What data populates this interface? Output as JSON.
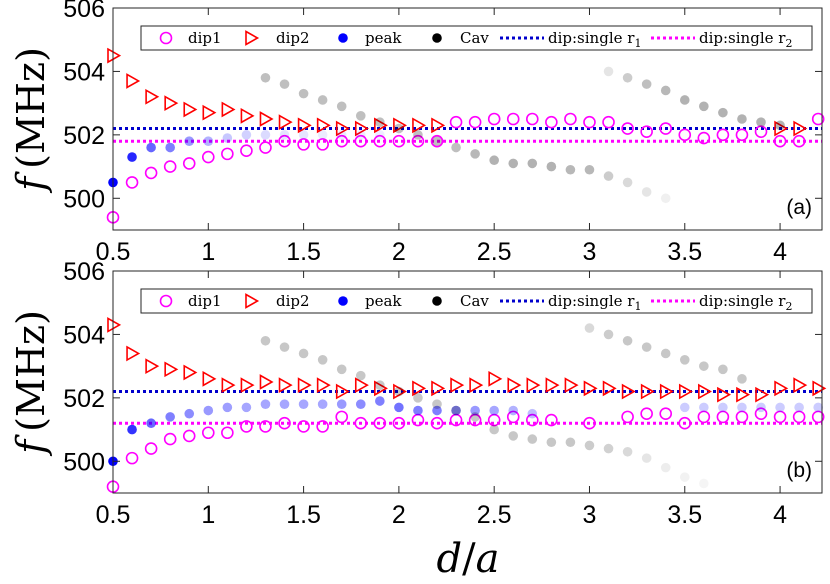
{
  "colors": {
    "dip1": "#ff00ff",
    "dip2": "#ff0000",
    "peak": "#0000ff",
    "cav": "#000000",
    "line_r1": "#0000cc",
    "line_r2": "#ff00ff"
  },
  "figure": {
    "xlabel_var": "d",
    "xlabel_sep": "/",
    "xlabel_den": "a"
  },
  "chart_data": [
    {
      "type": "scatter",
      "panel_label": "(a)",
      "xlim": [
        0.5,
        4.22
      ],
      "ylim": [
        499,
        506
      ],
      "xticks": [
        0.5,
        1,
        1.5,
        2,
        2.5,
        3,
        3.5,
        4
      ],
      "xtick_labels": [
        "0.5",
        "1",
        "1.5",
        "2",
        "2.5",
        "3",
        "3.5",
        "4"
      ],
      "yticks": [
        500,
        502,
        504,
        506
      ],
      "ytick_labels": [
        "500",
        "502",
        "504",
        "506"
      ],
      "ylabel_f": "f",
      "ylabel_unit": "(MHz)",
      "legend": [
        "dip1",
        "dip2",
        "peak",
        "Cav",
        "dip:single r",
        "dip:single r"
      ],
      "legend_subscripts": [
        "1",
        "2"
      ],
      "single_r1": 502.2,
      "single_r2": 501.8,
      "series": [
        {
          "name": "dip1",
          "x": [
            0.5,
            0.6,
            0.7,
            0.8,
            0.9,
            1.0,
            1.1,
            1.2,
            1.3,
            1.4,
            1.5,
            1.6,
            1.7,
            1.8,
            1.9,
            2.0,
            2.1,
            2.2,
            2.3,
            2.4,
            2.5,
            2.6,
            2.7,
            2.8,
            2.9,
            3.0,
            3.1,
            3.2,
            3.3,
            3.4,
            3.5,
            3.6,
            3.7,
            3.8,
            3.9,
            4.0,
            4.1,
            4.2
          ],
          "y": [
            499.4,
            500.5,
            500.8,
            501.0,
            501.1,
            501.3,
            501.4,
            501.5,
            501.6,
            501.8,
            501.7,
            501.7,
            501.8,
            501.8,
            501.8,
            501.8,
            501.8,
            501.8,
            502.4,
            502.4,
            502.5,
            502.5,
            502.5,
            502.4,
            502.5,
            502.4,
            502.4,
            502.2,
            502.1,
            502.2,
            502.0,
            501.9,
            502.0,
            502.0,
            502.1,
            501.8,
            501.8,
            502.5
          ]
        },
        {
          "name": "dip2",
          "x": [
            0.5,
            0.6,
            0.7,
            0.8,
            0.9,
            1.0,
            1.1,
            1.2,
            1.3,
            1.4,
            1.5,
            1.6,
            1.7,
            1.8,
            1.9,
            2.0,
            2.1,
            2.2,
            4.0,
            4.1
          ],
          "y": [
            504.5,
            503.7,
            503.2,
            503.0,
            502.8,
            502.7,
            502.8,
            502.6,
            502.5,
            502.4,
            502.3,
            502.3,
            502.2,
            502.2,
            502.3,
            502.3,
            502.3,
            502.3,
            502.2,
            502.2
          ]
        },
        {
          "name": "peak",
          "x": [
            0.5,
            0.6,
            0.7,
            0.8,
            0.9,
            1.0,
            1.1,
            1.2,
            1.3,
            1.4,
            1.5,
            1.6,
            1.7,
            1.8,
            1.9
          ],
          "y": [
            500.5,
            501.3,
            501.6,
            501.6,
            501.8,
            501.8,
            501.9,
            502.0,
            502.0,
            502.0,
            502.0,
            502.0,
            502.0,
            502.0,
            502.0
          ],
          "opacity": [
            1.0,
            0.85,
            0.6,
            0.5,
            0.4,
            0.3,
            0.22,
            0.18,
            0.14,
            0.1,
            0.1,
            0.08,
            0.08,
            0.07,
            0.07
          ]
        },
        {
          "name": "Cav",
          "x": [
            1.3,
            1.4,
            1.5,
            1.6,
            1.7,
            1.8,
            1.9,
            2.0,
            2.1,
            2.2,
            2.3,
            2.4,
            2.5,
            2.6,
            2.7,
            2.8,
            2.9,
            3.0,
            3.1,
            3.2,
            3.3,
            3.4,
            3.1,
            3.2,
            3.3,
            3.4,
            3.5,
            3.6,
            3.7,
            3.8,
            3.9,
            4.0
          ],
          "y": [
            503.8,
            503.6,
            503.3,
            503.1,
            502.9,
            502.6,
            502.4,
            502.2,
            502.0,
            501.8,
            501.6,
            501.4,
            501.2,
            501.1,
            501.1,
            501.0,
            500.9,
            500.9,
            500.7,
            500.5,
            500.2,
            500.0,
            504.0,
            503.8,
            503.6,
            503.4,
            503.1,
            502.9,
            502.7,
            502.5,
            502.4,
            502.3
          ],
          "opacity": [
            0.25,
            0.25,
            0.25,
            0.25,
            0.25,
            0.25,
            0.25,
            0.25,
            0.25,
            0.25,
            0.25,
            0.28,
            0.3,
            0.3,
            0.3,
            0.3,
            0.28,
            0.28,
            0.2,
            0.15,
            0.1,
            0.06,
            0.1,
            0.2,
            0.25,
            0.28,
            0.3,
            0.3,
            0.3,
            0.3,
            0.3,
            0.3
          ]
        }
      ]
    },
    {
      "type": "scatter",
      "panel_label": "(b)",
      "xlim": [
        0.5,
        4.22
      ],
      "ylim": [
        499,
        506
      ],
      "xticks": [
        0.5,
        1,
        1.5,
        2,
        2.5,
        3,
        3.5,
        4
      ],
      "xtick_labels": [
        "0.5",
        "1",
        "1.5",
        "2",
        "2.5",
        "3",
        "3.5",
        "4"
      ],
      "yticks": [
        500,
        502,
        504,
        506
      ],
      "ytick_labels": [
        "500",
        "502",
        "504",
        "506"
      ],
      "ylabel_f": "f",
      "ylabel_unit": "(MHz)",
      "legend": [
        "dip1",
        "dip2",
        "peak",
        "Cav",
        "dip:single r",
        "dip:single r"
      ],
      "legend_subscripts": [
        "1",
        "2"
      ],
      "single_r1": 502.2,
      "single_r2": 501.2,
      "series": [
        {
          "name": "dip1",
          "x": [
            0.5,
            0.6,
            0.7,
            0.8,
            0.9,
            1.0,
            1.1,
            1.2,
            1.3,
            1.4,
            1.5,
            1.6,
            1.7,
            1.8,
            1.9,
            2.0,
            2.1,
            2.2,
            2.3,
            2.4,
            2.5,
            2.6,
            2.7,
            2.8,
            3.0,
            3.2,
            3.3,
            3.4,
            3.5,
            3.6,
            3.7,
            3.8,
            3.9,
            4.0,
            4.1,
            4.2
          ],
          "y": [
            499.2,
            500.1,
            500.4,
            500.7,
            500.8,
            500.9,
            500.9,
            501.1,
            501.1,
            501.2,
            501.1,
            501.1,
            501.4,
            501.2,
            501.2,
            501.2,
            501.3,
            501.2,
            501.3,
            501.3,
            501.3,
            501.4,
            501.3,
            501.3,
            501.2,
            501.4,
            501.5,
            501.5,
            501.2,
            501.4,
            501.4,
            501.4,
            501.5,
            501.4,
            501.4,
            501.4
          ]
        },
        {
          "name": "dip2",
          "x": [
            0.5,
            0.6,
            0.7,
            0.8,
            0.9,
            1.0,
            1.1,
            1.2,
            1.3,
            1.4,
            1.5,
            1.6,
            1.7,
            1.8,
            1.9,
            2.0,
            2.1,
            2.2,
            2.3,
            2.4,
            2.5,
            2.6,
            2.7,
            2.8,
            2.9,
            3.0,
            3.1,
            3.2,
            3.3,
            3.4,
            3.5,
            3.6,
            3.7,
            3.8,
            3.9,
            4.0,
            4.1,
            4.2
          ],
          "y": [
            504.3,
            503.4,
            503.0,
            502.9,
            502.8,
            502.6,
            502.4,
            502.4,
            502.5,
            502.4,
            502.4,
            502.4,
            502.2,
            502.4,
            502.3,
            502.2,
            502.3,
            502.3,
            502.4,
            502.4,
            502.6,
            502.4,
            502.4,
            502.4,
            502.4,
            502.3,
            502.3,
            502.2,
            502.2,
            502.2,
            502.2,
            502.2,
            502.1,
            502.1,
            502.1,
            502.3,
            502.4,
            502.3
          ]
        },
        {
          "name": "peak",
          "x": [
            0.5,
            0.6,
            0.7,
            0.8,
            0.9,
            1.0,
            1.1,
            1.2,
            1.3,
            1.4,
            1.5,
            1.6,
            1.7,
            1.8,
            1.9,
            2.0,
            2.1,
            2.2,
            2.3,
            2.4,
            2.5,
            2.6,
            2.7,
            3.5,
            3.6,
            3.7,
            3.8,
            3.9,
            4.0,
            4.1,
            4.2
          ],
          "y": [
            500.0,
            501.0,
            501.2,
            501.4,
            501.5,
            501.6,
            501.7,
            501.7,
            501.8,
            501.8,
            501.8,
            501.8,
            501.8,
            501.8,
            501.9,
            501.7,
            501.6,
            501.6,
            501.6,
            501.6,
            501.6,
            501.6,
            501.5,
            501.7,
            501.7,
            501.7,
            501.7,
            501.7,
            501.7,
            501.7,
            501.7
          ],
          "opacity": [
            1.0,
            0.8,
            0.6,
            0.5,
            0.45,
            0.4,
            0.38,
            0.35,
            0.35,
            0.35,
            0.35,
            0.35,
            0.4,
            0.45,
            0.5,
            0.55,
            0.5,
            0.5,
            0.45,
            0.4,
            0.35,
            0.3,
            0.25,
            0.2,
            0.2,
            0.2,
            0.2,
            0.2,
            0.2,
            0.2,
            0.2
          ]
        },
        {
          "name": "Cav",
          "x": [
            1.3,
            1.4,
            1.5,
            1.6,
            1.7,
            1.8,
            1.9,
            2.0,
            2.1,
            2.2,
            2.3,
            2.4,
            2.5,
            2.6,
            2.7,
            2.8,
            2.9,
            3.0,
            3.1,
            3.2,
            3.3,
            3.4,
            3.5,
            3.6,
            3.0,
            3.1,
            3.2,
            3.3,
            3.4,
            3.5,
            3.6,
            3.7,
            3.8
          ],
          "y": [
            503.8,
            503.6,
            503.4,
            503.2,
            502.9,
            502.7,
            502.4,
            502.2,
            502.0,
            501.8,
            501.6,
            501.4,
            501.0,
            500.8,
            500.7,
            500.6,
            500.6,
            500.5,
            500.4,
            500.3,
            500.1,
            499.8,
            499.5,
            499.3,
            504.2,
            504.0,
            503.8,
            503.6,
            503.4,
            503.2,
            503.0,
            502.9,
            502.6
          ],
          "opacity": [
            0.22,
            0.22,
            0.22,
            0.22,
            0.22,
            0.22,
            0.22,
            0.22,
            0.22,
            0.22,
            0.22,
            0.22,
            0.22,
            0.22,
            0.22,
            0.22,
            0.22,
            0.2,
            0.18,
            0.15,
            0.1,
            0.07,
            0.05,
            0.04,
            0.15,
            0.2,
            0.22,
            0.22,
            0.22,
            0.22,
            0.22,
            0.22,
            0.22
          ]
        }
      ]
    }
  ]
}
